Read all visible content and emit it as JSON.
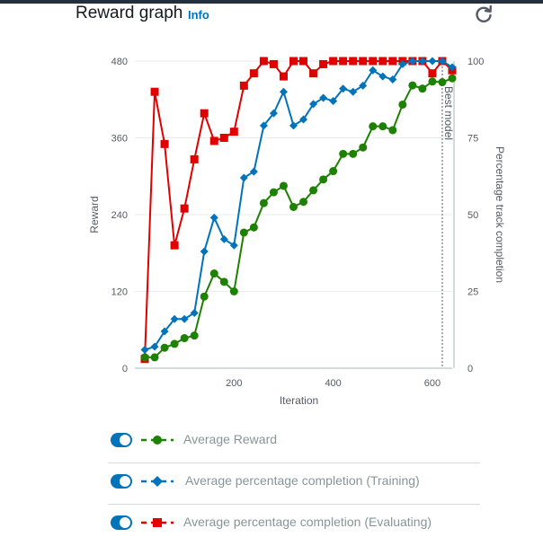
{
  "header": {
    "title": "Reward graph",
    "info_label": "Info",
    "refresh_icon": "refresh-icon"
  },
  "colors": {
    "reward": "#1d8102",
    "training": "#0073bb",
    "evaluating": "#e00000",
    "toggle": "#0073bb"
  },
  "legend": [
    {
      "label": "Average Reward",
      "series": "reward",
      "marker": "circle"
    },
    {
      "label": "Average percentage completion (Training)",
      "series": "training",
      "marker": "diamond"
    },
    {
      "label": "Average percentage completion (Evaluating)",
      "series": "evaluating",
      "marker": "square"
    }
  ],
  "chart_data": {
    "type": "line",
    "xlabel": "Iteration",
    "ylabel": "Reward",
    "y2label": "Percentage track completion",
    "xlim": [
      0,
      640
    ],
    "ylim": [
      0,
      480
    ],
    "y2lim": [
      0,
      100
    ],
    "xticks": [
      200,
      400,
      600
    ],
    "yticks": [
      0,
      120,
      240,
      360,
      480
    ],
    "y2ticks": [
      0,
      25,
      50,
      75,
      100
    ],
    "grid": true,
    "annotation": {
      "label": "Best model",
      "x": 620
    },
    "series": [
      {
        "name": "Average Reward",
        "axis": "left",
        "key": "reward",
        "x": [
          20,
          40,
          60,
          80,
          100,
          120,
          140,
          160,
          180,
          200,
          220,
          240,
          260,
          280,
          300,
          320,
          340,
          360,
          380,
          400,
          420,
          440,
          460,
          480,
          500,
          520,
          540,
          560,
          580,
          600,
          620,
          640
        ],
        "y": [
          17,
          17,
          32,
          38,
          47,
          51,
          112,
          148,
          135,
          120,
          212,
          220,
          258,
          275,
          285,
          252,
          260,
          278,
          295,
          308,
          335,
          335,
          345,
          378,
          378,
          372,
          412,
          442,
          437,
          448,
          447,
          453
        ]
      },
      {
        "name": "Average percentage completion (Training)",
        "axis": "right",
        "key": "training",
        "x": [
          20,
          40,
          60,
          80,
          100,
          120,
          140,
          160,
          180,
          200,
          220,
          240,
          260,
          280,
          300,
          320,
          340,
          360,
          380,
          400,
          420,
          440,
          460,
          480,
          500,
          520,
          540,
          560,
          580,
          600,
          620,
          640
        ],
        "y": [
          6,
          7,
          12,
          16,
          16,
          18,
          38,
          49,
          42,
          40,
          62,
          64,
          79,
          83,
          90,
          79,
          81,
          86,
          88,
          87,
          91,
          90,
          92,
          97,
          95,
          94,
          99,
          100,
          100,
          100,
          100,
          98
        ]
      },
      {
        "name": "Average percentage completion (Evaluating)",
        "axis": "right",
        "key": "evaluating",
        "x": [
          20,
          40,
          60,
          80,
          100,
          120,
          140,
          160,
          180,
          200,
          220,
          240,
          260,
          280,
          300,
          320,
          340,
          360,
          380,
          400,
          420,
          440,
          460,
          480,
          500,
          520,
          540,
          560,
          580,
          600,
          620,
          640
        ],
        "y": [
          3,
          90,
          73,
          40,
          52,
          68,
          83,
          74,
          75,
          77,
          92,
          96,
          100,
          99,
          95,
          100,
          100,
          96,
          99,
          100,
          100,
          100,
          100,
          100,
          100,
          100,
          100,
          100,
          100,
          96,
          100,
          97
        ]
      }
    ]
  }
}
